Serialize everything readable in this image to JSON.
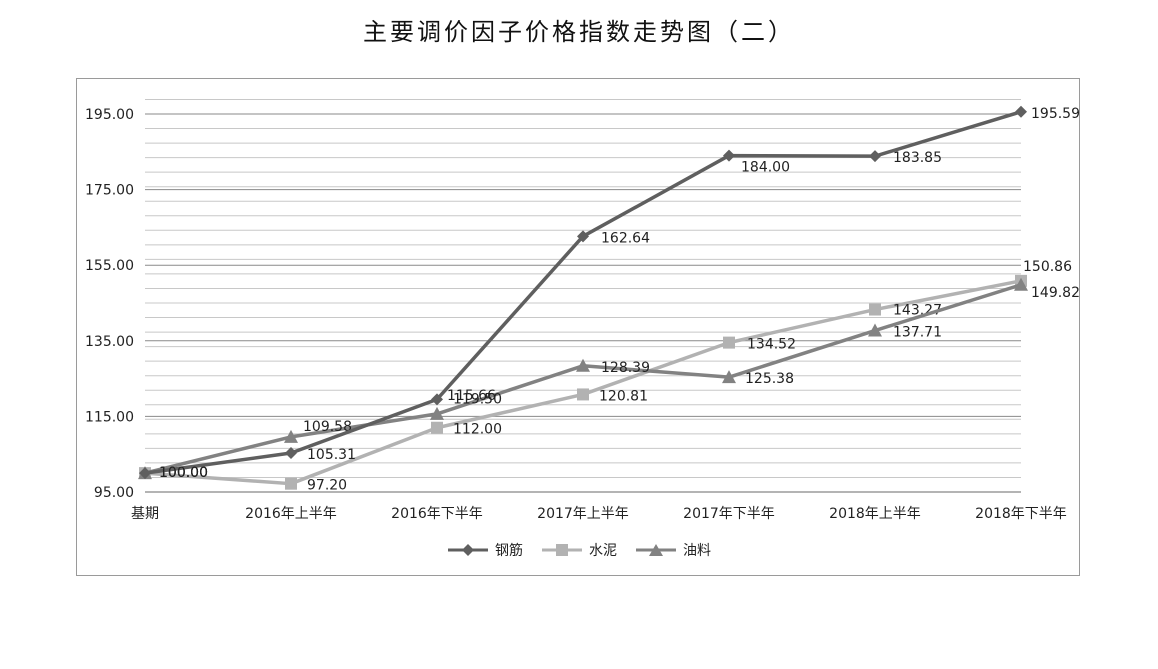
{
  "chart_data": {
    "type": "line",
    "title": "主要调价因子价格指数走势图（二）",
    "categories": [
      "基期",
      "2016年上半年",
      "2016年下半年",
      "2017年上半年",
      "2017年下半年",
      "2018年上半年",
      "2018年下半年"
    ],
    "ylim": [
      95,
      195
    ],
    "yticks": [
      "95.00",
      "115.00",
      "135.00",
      "155.00",
      "175.00",
      "195.00"
    ],
    "grid": true,
    "legend_position": "bottom",
    "series": [
      {
        "name": "钢筋",
        "marker": "diamond",
        "color": "#5f5f5f",
        "values": [
          100.0,
          105.31,
          119.5,
          162.64,
          184.0,
          183.85,
          195.59
        ],
        "labels": [
          "100.00",
          "105.31",
          "119.50",
          "162.64",
          "184.00",
          "183.85",
          "195.59"
        ]
      },
      {
        "name": "水泥",
        "marker": "square",
        "color": "#b2b2b2",
        "values": [
          100.0,
          97.2,
          112.0,
          120.81,
          134.52,
          143.27,
          150.86
        ],
        "labels": [
          "100.00",
          "97.20",
          "112.00",
          "120.81",
          "134.52",
          "143.27",
          "150.86"
        ]
      },
      {
        "name": "油料",
        "marker": "triangle",
        "color": "#828282",
        "values": [
          100.0,
          109.58,
          115.66,
          128.39,
          125.38,
          137.71,
          149.82
        ],
        "labels": [
          "100.00",
          "109.58",
          "115.66",
          "128.39",
          "125.38",
          "137.71",
          "149.82"
        ]
      }
    ]
  }
}
